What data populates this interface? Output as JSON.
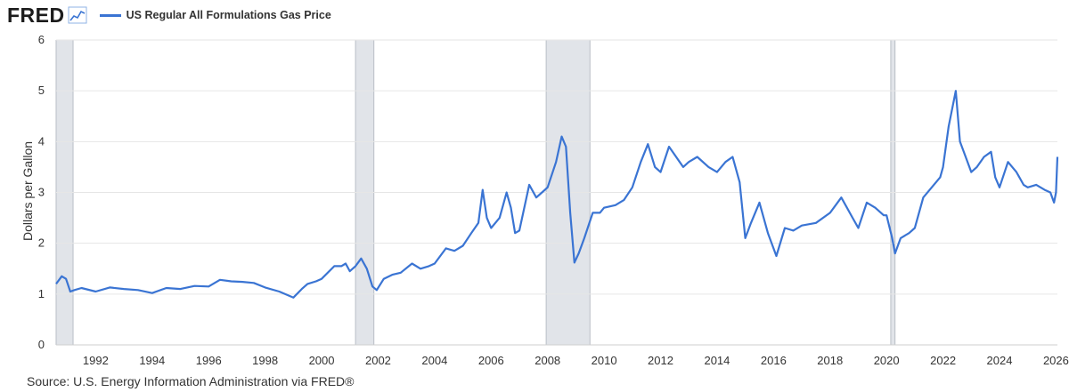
{
  "header": {
    "brand": "FRED",
    "brand_icon": "line-chart-icon",
    "series_label": "US Regular All Formulations Gas Price"
  },
  "source": "Source: U.S. Energy Information Administration via FRED®",
  "colors": {
    "line": "#3a74d3",
    "recession_fill": "#e1e4e9",
    "recession_edge": "#b9bec6",
    "grid": "#e6e6e6"
  },
  "chart_data": {
    "type": "line",
    "title": "",
    "xlabel": "",
    "ylabel": "Dollars per Gallon",
    "xlim": [
      1990.6,
      2026.05
    ],
    "ylim": [
      0,
      6
    ],
    "y_ticks": [
      "0",
      "1",
      "2",
      "3",
      "4",
      "5",
      "6"
    ],
    "x_ticks": [
      "1992",
      "1994",
      "1996",
      "1998",
      "2000",
      "2002",
      "2004",
      "2006",
      "2008",
      "2010",
      "2012",
      "2014",
      "2016",
      "2018",
      "2020",
      "2022",
      "2024",
      "2026"
    ],
    "grid": "horizontal",
    "recessions": [
      [
        1990.6,
        1991.2
      ],
      [
        2001.2,
        2001.85
      ],
      [
        2007.95,
        2009.5
      ],
      [
        2020.15,
        2020.3
      ]
    ],
    "series": [
      {
        "name": "US Regular All Formulations Gas Price",
        "x": [
          1990.6,
          1990.8,
          1990.95,
          1991.1,
          1991.25,
          1991.5,
          1992.0,
          1992.5,
          1993.0,
          1993.5,
          1994.0,
          1994.5,
          1995.0,
          1995.5,
          1996.0,
          1996.4,
          1996.8,
          1997.2,
          1997.6,
          1998.0,
          1998.5,
          1999.0,
          1999.3,
          1999.5,
          1999.8,
          2000.0,
          2000.45,
          2000.7,
          2000.85,
          2001.0,
          2001.2,
          2001.4,
          2001.6,
          2001.8,
          2001.95,
          2002.2,
          2002.5,
          2002.8,
          2003.2,
          2003.5,
          2003.8,
          2004.0,
          2004.4,
          2004.7,
          2005.0,
          2005.3,
          2005.55,
          2005.7,
          2005.85,
          2006.0,
          2006.3,
          2006.55,
          2006.7,
          2006.85,
          2007.0,
          2007.35,
          2007.6,
          2007.8,
          2008.0,
          2008.3,
          2008.5,
          2008.65,
          2008.8,
          2008.95,
          2009.1,
          2009.3,
          2009.6,
          2009.85,
          2010.0,
          2010.4,
          2010.7,
          2011.0,
          2011.3,
          2011.55,
          2011.8,
          2012.0,
          2012.3,
          2012.55,
          2012.8,
          2013.0,
          2013.3,
          2013.7,
          2014.0,
          2014.3,
          2014.55,
          2014.8,
          2015.0,
          2015.2,
          2015.5,
          2015.8,
          2016.1,
          2016.4,
          2016.7,
          2017.0,
          2017.5,
          2018.0,
          2018.4,
          2018.8,
          2019.0,
          2019.3,
          2019.6,
          2019.9,
          2020.0,
          2020.2,
          2020.3,
          2020.5,
          2020.8,
          2021.0,
          2021.3,
          2021.6,
          2021.9,
          2022.0,
          2022.2,
          2022.45,
          2022.6,
          2022.8,
          2023.0,
          2023.2,
          2023.45,
          2023.7,
          2023.85,
          2024.0,
          2024.3,
          2024.6,
          2024.85,
          2025.0,
          2025.3,
          2025.6,
          2025.8,
          2025.93,
          2026.0,
          2026.05
        ],
        "values": [
          1.2,
          1.35,
          1.3,
          1.05,
          1.08,
          1.12,
          1.05,
          1.13,
          1.1,
          1.08,
          1.02,
          1.12,
          1.1,
          1.16,
          1.15,
          1.28,
          1.25,
          1.24,
          1.22,
          1.13,
          1.05,
          0.93,
          1.1,
          1.2,
          1.25,
          1.3,
          1.55,
          1.55,
          1.6,
          1.45,
          1.55,
          1.7,
          1.5,
          1.15,
          1.08,
          1.3,
          1.38,
          1.42,
          1.6,
          1.5,
          1.55,
          1.6,
          1.9,
          1.85,
          1.95,
          2.2,
          2.4,
          3.05,
          2.5,
          2.3,
          2.5,
          3.0,
          2.7,
          2.2,
          2.25,
          3.15,
          2.9,
          3.0,
          3.1,
          3.6,
          4.1,
          3.9,
          2.6,
          1.62,
          1.8,
          2.1,
          2.6,
          2.6,
          2.7,
          2.75,
          2.85,
          3.1,
          3.6,
          3.95,
          3.5,
          3.4,
          3.9,
          3.7,
          3.5,
          3.6,
          3.7,
          3.5,
          3.4,
          3.6,
          3.7,
          3.2,
          2.1,
          2.4,
          2.8,
          2.2,
          1.75,
          2.3,
          2.25,
          2.35,
          2.4,
          2.6,
          2.9,
          2.5,
          2.3,
          2.8,
          2.7,
          2.55,
          2.55,
          2.1,
          1.8,
          2.1,
          2.2,
          2.3,
          2.9,
          3.1,
          3.3,
          3.5,
          4.3,
          5.0,
          4.0,
          3.7,
          3.4,
          3.5,
          3.7,
          3.8,
          3.3,
          3.1,
          3.6,
          3.4,
          3.15,
          3.1,
          3.15,
          3.05,
          3.0,
          2.8,
          3.0,
          3.7
        ]
      }
    ]
  }
}
